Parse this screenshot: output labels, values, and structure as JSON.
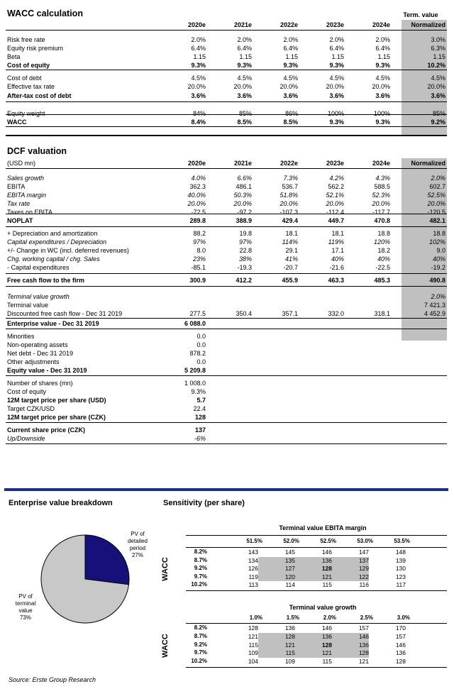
{
  "wacc": {
    "title": "WACC calculation",
    "term_value_label": "Term. value",
    "years": [
      "2020e",
      "2021e",
      "2022e",
      "2023e",
      "2024e",
      "Normalized"
    ],
    "rows": [
      {
        "label": "Risk free rate",
        "vals": [
          "2.0%",
          "2.0%",
          "2.0%",
          "2.0%",
          "2.0%",
          "3.0%"
        ]
      },
      {
        "label": "Equity risk premium",
        "vals": [
          "6.4%",
          "6.4%",
          "6.4%",
          "6.4%",
          "6.4%",
          "6.3%"
        ]
      },
      {
        "label": "Beta",
        "vals": [
          "1.15",
          "1.15",
          "1.15",
          "1.15",
          "1.15",
          "1.15"
        ]
      },
      {
        "label": "Cost of equity",
        "vals": [
          "9.3%",
          "9.3%",
          "9.3%",
          "9.3%",
          "9.3%",
          "10.2%"
        ]
      },
      {
        "label": "Cost of debt",
        "vals": [
          "4.5%",
          "4.5%",
          "4.5%",
          "4.5%",
          "4.5%",
          "4.5%"
        ]
      },
      {
        "label": "Effective tax rate",
        "vals": [
          "20.0%",
          "20.0%",
          "20.0%",
          "20.0%",
          "20.0%",
          "20.0%"
        ]
      },
      {
        "label": "After-tax cost of debt",
        "vals": [
          "3.6%",
          "3.6%",
          "3.6%",
          "3.6%",
          "3.6%",
          "3.6%"
        ]
      },
      {
        "label": "Equity weight",
        "vals": [
          "84%",
          "85%",
          "86%",
          "100%",
          "100%",
          "85%"
        ]
      },
      {
        "label": "WACC",
        "vals": [
          "8.4%",
          "8.5%",
          "8.5%",
          "9.3%",
          "9.3%",
          "9.2%"
        ]
      }
    ]
  },
  "dcf": {
    "title": "DCF valuation",
    "unit": "(USD mn)",
    "years": [
      "2020e",
      "2021e",
      "2022e",
      "2023e",
      "2024e",
      "Normalized"
    ],
    "rows": [
      {
        "label": "Sales growth",
        "vals": [
          "4.0%",
          "6.6%",
          "7.3%",
          "4.2%",
          "4.3%",
          "2.0%"
        ]
      },
      {
        "label": "EBITA",
        "vals": [
          "362.3",
          "486.1",
          "536.7",
          "562.2",
          "588.5",
          "602.7"
        ]
      },
      {
        "label": "EBITA margin",
        "vals": [
          "40.0%",
          "50.3%",
          "51.8%",
          "52.1%",
          "52.3%",
          "52.5%"
        ]
      },
      {
        "label": "Tax rate",
        "vals": [
          "20.0%",
          "20.0%",
          "20.0%",
          "20.0%",
          "20.0%",
          "20.0%"
        ]
      },
      {
        "label": "Taxes on EBITA",
        "vals": [
          "-72.5",
          "-97.2",
          "-107.3",
          "-112.4",
          "-117.7",
          "-120.5"
        ]
      },
      {
        "label": "NOPLAT",
        "vals": [
          "289.8",
          "388.9",
          "429.4",
          "449.7",
          "470.8",
          "482.1"
        ]
      },
      {
        "label": "+ Depreciation and amortization",
        "vals": [
          "88.2",
          "19.8",
          "18.1",
          "18.1",
          "18.8",
          "18.8"
        ]
      },
      {
        "label": "Capital expenditures / Depreciation",
        "vals": [
          "97%",
          "97%",
          "114%",
          "119%",
          "120%",
          "102%"
        ]
      },
      {
        "label": "+/- Change in WC (incl. deferred revenues)",
        "vals": [
          "8.0",
          "22.8",
          "29.1",
          "17.1",
          "18.2",
          "9.0"
        ]
      },
      {
        "label": "Chg. working capital / chg. Sales",
        "vals": [
          "23%",
          "38%",
          "41%",
          "40%",
          "40%",
          "40%"
        ]
      },
      {
        "label": "- Capital expenditures",
        "vals": [
          "-85.1",
          "-19.3",
          "-20.7",
          "-21.6",
          "-22.5",
          "-19.2"
        ]
      },
      {
        "label": "Free cash flow to the firm",
        "vals": [
          "300.9",
          "412.2",
          "455.9",
          "463.3",
          "485.3",
          "490.8"
        ]
      },
      {
        "label": "Terminal value growth",
        "vals": [
          "",
          "",
          "",
          "",
          "",
          "2.0%"
        ]
      },
      {
        "label": "Terminal value",
        "vals": [
          "",
          "",
          "",
          "",
          "",
          "7 421.3"
        ]
      },
      {
        "label": "Discounted free cash flow - Dec 31 2019",
        "vals": [
          "277.5",
          "350.4",
          "357.1",
          "332.0",
          "318.1",
          "4 452.9"
        ]
      }
    ],
    "bridge": [
      {
        "label": "Enterprise value - Dec 31 2019",
        "val": "6 088.0"
      },
      {
        "label": "Minorities",
        "val": "0.0"
      },
      {
        "label": "Non-operating assets",
        "val": "0.0"
      },
      {
        "label": "Net debt - Dec 31 2019",
        "val": "878.2"
      },
      {
        "label": "Other adjustments",
        "val": "0.0"
      },
      {
        "label": "Equity value - Dec 31 2019",
        "val": "5 209.8"
      },
      {
        "label": "Number of shares (mn)",
        "val": "1 008.0"
      },
      {
        "label": "Cost of equity",
        "val": "9.3%"
      },
      {
        "label": "12M target price per share (USD)",
        "val": "5.7"
      },
      {
        "label": "Target CZK/USD",
        "val": "22.4"
      },
      {
        "label": "12M target price per share (CZK)",
        "val": "128"
      },
      {
        "label": "Current share price (CZK)",
        "val": "137"
      },
      {
        "label": "Up/Downside",
        "val": "-6%"
      }
    ]
  },
  "ev_breakdown": {
    "title": "Enterprise value breakdown",
    "slices": [
      {
        "label1": "PV of",
        "label2": "detailed",
        "label3": "period",
        "pct": "27%",
        "value": 27,
        "color": "#16117a"
      },
      {
        "label1": "PV of",
        "label2": "terminal",
        "label3": "value",
        "pct": "73%",
        "value": 73,
        "color": "#c8c8c8"
      }
    ]
  },
  "sensitivity": {
    "title": "Sensitivity (per share)",
    "axis_label": "WACC",
    "table1": {
      "header": "Terminal value EBITA margin",
      "cols": [
        "51.5%",
        "52.0%",
        "52.5%",
        "53.0%",
        "53.5%"
      ],
      "rows": [
        {
          "wacc": "8.2%",
          "vals": [
            "143",
            "145",
            "146",
            "147",
            "148"
          ]
        },
        {
          "wacc": "8.7%",
          "vals": [
            "134",
            "135",
            "136",
            "137",
            "139"
          ]
        },
        {
          "wacc": "9.2%",
          "vals": [
            "126",
            "127",
            "128",
            "129",
            "130"
          ]
        },
        {
          "wacc": "9.7%",
          "vals": [
            "119",
            "120",
            "121",
            "122",
            "123"
          ]
        },
        {
          "wacc": "10.2%",
          "vals": [
            "113",
            "114",
            "115",
            "116",
            "117"
          ]
        }
      ]
    },
    "table2": {
      "header": "Terminal value growth",
      "cols": [
        "1.0%",
        "1.5%",
        "2.0%",
        "2.5%",
        "3.0%"
      ],
      "rows": [
        {
          "wacc": "8.2%",
          "vals": [
            "128",
            "136",
            "146",
            "157",
            "170"
          ]
        },
        {
          "wacc": "8.7%",
          "vals": [
            "121",
            "128",
            "136",
            "146",
            "157"
          ]
        },
        {
          "wacc": "9.2%",
          "vals": [
            "115",
            "121",
            "128",
            "136",
            "146"
          ]
        },
        {
          "wacc": "9.7%",
          "vals": [
            "109",
            "115",
            "121",
            "128",
            "136"
          ]
        },
        {
          "wacc": "10.2%",
          "vals": [
            "104",
            "109",
            "115",
            "121",
            "128"
          ]
        }
      ]
    }
  },
  "source": "Source: Erste Group Research"
}
